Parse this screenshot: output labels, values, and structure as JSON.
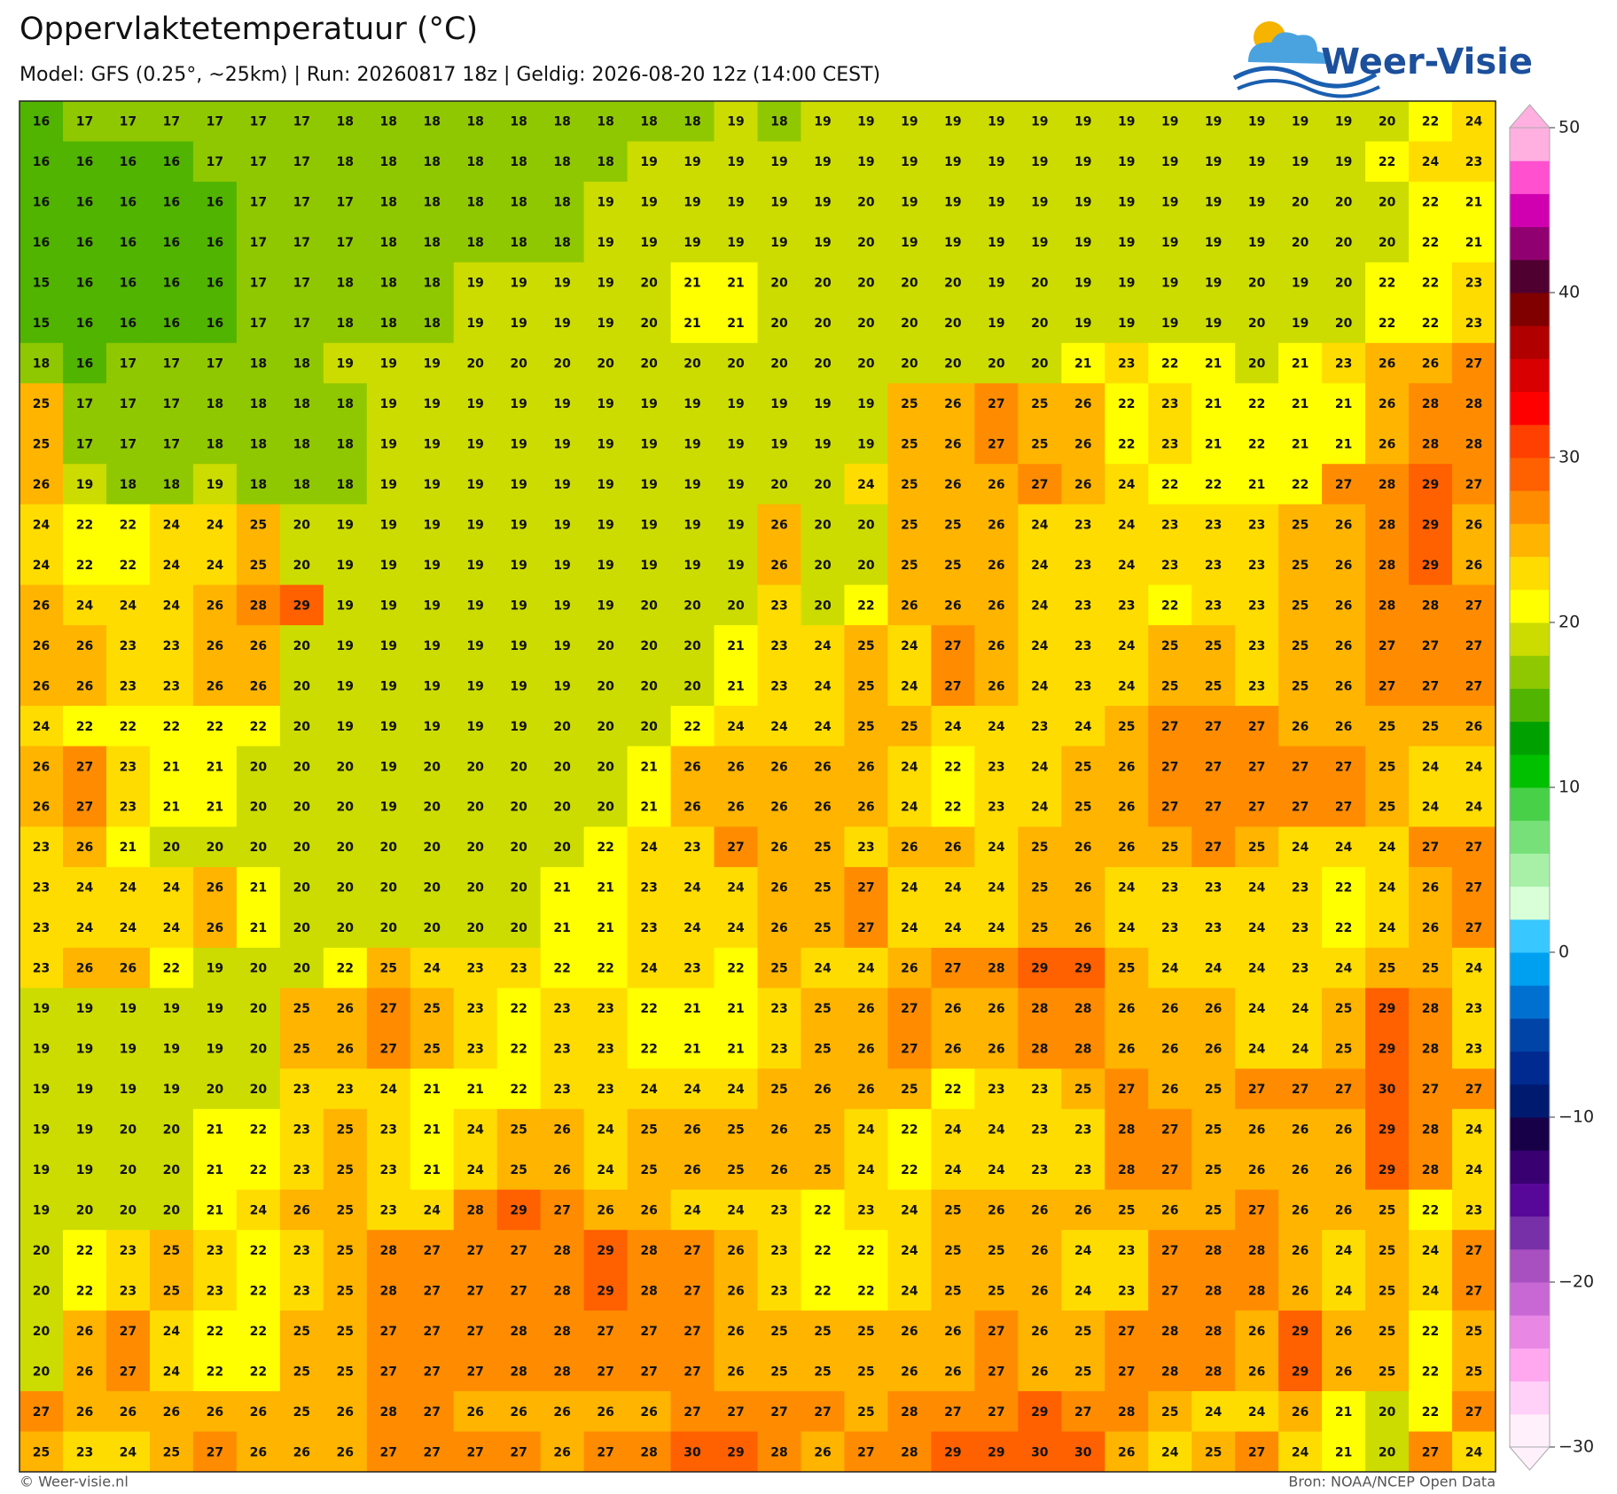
{
  "map": {
    "title": "Oppervlaktetemperatuur (°C)",
    "subtitle": "Model: GFS (0.25°, ~25km)  |  Run: 20260817 18z  |  Geldig: 2026-08-20 12z (14:00 CEST)",
    "logo_text": "Weer-Visie",
    "footer_left": "© Weer-visie.nl",
    "footer_right": "Bron: NOAA/NCEP Open Data",
    "grid": [
      [
        16,
        17,
        17,
        17,
        17,
        17,
        17,
        18,
        18,
        18,
        18,
        18,
        18,
        18,
        18,
        18,
        19,
        18,
        19,
        19,
        19,
        19,
        19,
        19,
        19,
        19,
        19,
        19,
        19,
        19,
        19,
        20,
        22,
        24
      ],
      [
        16,
        16,
        16,
        16,
        17,
        17,
        17,
        18,
        18,
        18,
        18,
        18,
        18,
        18,
        19,
        19,
        19,
        19,
        19,
        19,
        19,
        19,
        19,
        19,
        19,
        19,
        19,
        19,
        19,
        19,
        19,
        22,
        24,
        23
      ],
      [
        16,
        16,
        16,
        16,
        16,
        17,
        17,
        17,
        18,
        18,
        18,
        18,
        18,
        19,
        19,
        19,
        19,
        19,
        19,
        20,
        19,
        19,
        19,
        19,
        19,
        19,
        19,
        19,
        19,
        20,
        20,
        20,
        22,
        21
      ],
      [
        16,
        16,
        16,
        16,
        16,
        17,
        17,
        17,
        18,
        18,
        18,
        18,
        18,
        19,
        19,
        19,
        19,
        19,
        19,
        20,
        19,
        19,
        19,
        19,
        19,
        19,
        19,
        19,
        19,
        20,
        20,
        20,
        22,
        21
      ],
      [
        15,
        16,
        16,
        16,
        16,
        17,
        17,
        18,
        18,
        18,
        19,
        19,
        19,
        19,
        20,
        21,
        21,
        20,
        20,
        20,
        20,
        20,
        19,
        20,
        19,
        19,
        19,
        19,
        20,
        19,
        20,
        22,
        22,
        23
      ],
      [
        15,
        16,
        16,
        16,
        16,
        17,
        17,
        18,
        18,
        18,
        19,
        19,
        19,
        19,
        20,
        21,
        21,
        20,
        20,
        20,
        20,
        20,
        19,
        20,
        19,
        19,
        19,
        19,
        20,
        19,
        20,
        22,
        22,
        23
      ],
      [
        18,
        16,
        17,
        17,
        17,
        18,
        18,
        19,
        19,
        19,
        20,
        20,
        20,
        20,
        20,
        20,
        20,
        20,
        20,
        20,
        20,
        20,
        20,
        20,
        21,
        23,
        22,
        21,
        20,
        21,
        23,
        26,
        26,
        27
      ],
      [
        25,
        17,
        17,
        17,
        18,
        18,
        18,
        18,
        19,
        19,
        19,
        19,
        19,
        19,
        19,
        19,
        19,
        19,
        19,
        19,
        25,
        26,
        27,
        25,
        26,
        22,
        23,
        21,
        22,
        21,
        21,
        26,
        28,
        28
      ],
      [
        25,
        17,
        17,
        17,
        18,
        18,
        18,
        18,
        19,
        19,
        19,
        19,
        19,
        19,
        19,
        19,
        19,
        19,
        19,
        19,
        25,
        26,
        27,
        25,
        26,
        22,
        23,
        21,
        22,
        21,
        21,
        26,
        28,
        28
      ],
      [
        26,
        19,
        18,
        18,
        19,
        18,
        18,
        18,
        19,
        19,
        19,
        19,
        19,
        19,
        19,
        19,
        19,
        20,
        20,
        24,
        25,
        26,
        26,
        27,
        26,
        24,
        22,
        22,
        21,
        22,
        27,
        28,
        29,
        27
      ],
      [
        24,
        22,
        22,
        24,
        24,
        25,
        20,
        19,
        19,
        19,
        19,
        19,
        19,
        19,
        19,
        19,
        19,
        26,
        20,
        20,
        25,
        25,
        26,
        24,
        23,
        24,
        23,
        23,
        23,
        25,
        26,
        28,
        29,
        26
      ],
      [
        24,
        22,
        22,
        24,
        24,
        25,
        20,
        19,
        19,
        19,
        19,
        19,
        19,
        19,
        19,
        19,
        19,
        26,
        20,
        20,
        25,
        25,
        26,
        24,
        23,
        24,
        23,
        23,
        23,
        25,
        26,
        28,
        29,
        26
      ],
      [
        26,
        24,
        24,
        24,
        26,
        28,
        29,
        19,
        19,
        19,
        19,
        19,
        19,
        19,
        20,
        20,
        20,
        23,
        20,
        22,
        26,
        26,
        26,
        24,
        23,
        23,
        22,
        23,
        23,
        25,
        26,
        28,
        28,
        27
      ],
      [
        26,
        26,
        23,
        23,
        26,
        26,
        20,
        19,
        19,
        19,
        19,
        19,
        19,
        20,
        20,
        20,
        21,
        23,
        24,
        25,
        24,
        27,
        26,
        24,
        23,
        24,
        25,
        25,
        23,
        25,
        26,
        27,
        27,
        27
      ],
      [
        26,
        26,
        23,
        23,
        26,
        26,
        20,
        19,
        19,
        19,
        19,
        19,
        19,
        20,
        20,
        20,
        21,
        23,
        24,
        25,
        24,
        27,
        26,
        24,
        23,
        24,
        25,
        25,
        23,
        25,
        26,
        27,
        27,
        27
      ],
      [
        24,
        22,
        22,
        22,
        22,
        22,
        20,
        19,
        19,
        19,
        19,
        19,
        20,
        20,
        20,
        22,
        24,
        24,
        24,
        25,
        25,
        24,
        24,
        23,
        24,
        25,
        27,
        27,
        27,
        26,
        26,
        25,
        25,
        26
      ],
      [
        26,
        27,
        23,
        21,
        21,
        20,
        20,
        20,
        19,
        20,
        20,
        20,
        20,
        20,
        21,
        26,
        26,
        26,
        26,
        26,
        24,
        22,
        23,
        24,
        25,
        26,
        27,
        27,
        27,
        27,
        27,
        25,
        24,
        24
      ],
      [
        26,
        27,
        23,
        21,
        21,
        20,
        20,
        20,
        19,
        20,
        20,
        20,
        20,
        20,
        21,
        26,
        26,
        26,
        26,
        26,
        24,
        22,
        23,
        24,
        25,
        26,
        27,
        27,
        27,
        27,
        27,
        25,
        24,
        24
      ],
      [
        23,
        26,
        21,
        20,
        20,
        20,
        20,
        20,
        20,
        20,
        20,
        20,
        20,
        22,
        24,
        23,
        27,
        26,
        25,
        23,
        26,
        26,
        24,
        25,
        26,
        26,
        25,
        27,
        25,
        24,
        24,
        24,
        27,
        27
      ],
      [
        23,
        24,
        24,
        24,
        26,
        21,
        20,
        20,
        20,
        20,
        20,
        20,
        21,
        21,
        23,
        24,
        24,
        26,
        25,
        27,
        24,
        24,
        24,
        25,
        26,
        24,
        23,
        23,
        24,
        23,
        22,
        24,
        26,
        27
      ],
      [
        23,
        24,
        24,
        24,
        26,
        21,
        20,
        20,
        20,
        20,
        20,
        20,
        21,
        21,
        23,
        24,
        24,
        26,
        25,
        27,
        24,
        24,
        24,
        25,
        26,
        24,
        23,
        23,
        24,
        23,
        22,
        24,
        26,
        27
      ],
      [
        23,
        26,
        26,
        22,
        19,
        20,
        20,
        22,
        25,
        24,
        23,
        23,
        22,
        22,
        24,
        23,
        22,
        25,
        24,
        24,
        26,
        27,
        28,
        29,
        29,
        25,
        24,
        24,
        24,
        23,
        24,
        25,
        25,
        24
      ],
      [
        19,
        19,
        19,
        19,
        19,
        20,
        25,
        26,
        27,
        25,
        23,
        22,
        23,
        23,
        22,
        21,
        21,
        23,
        25,
        26,
        27,
        26,
        26,
        28,
        28,
        26,
        26,
        26,
        24,
        24,
        25,
        29,
        28,
        23
      ],
      [
        19,
        19,
        19,
        19,
        19,
        20,
        25,
        26,
        27,
        25,
        23,
        22,
        23,
        23,
        22,
        21,
        21,
        23,
        25,
        26,
        27,
        26,
        26,
        28,
        28,
        26,
        26,
        26,
        24,
        24,
        25,
        29,
        28,
        23
      ],
      [
        19,
        19,
        19,
        19,
        20,
        20,
        23,
        23,
        24,
        21,
        21,
        22,
        23,
        23,
        24,
        24,
        24,
        25,
        26,
        26,
        25,
        22,
        23,
        23,
        25,
        27,
        26,
        25,
        27,
        27,
        27,
        30,
        27,
        27
      ],
      [
        19,
        19,
        20,
        20,
        21,
        22,
        23,
        25,
        23,
        21,
        24,
        25,
        26,
        24,
        25,
        26,
        25,
        26,
        25,
        24,
        22,
        24,
        24,
        23,
        23,
        28,
        27,
        25,
        26,
        26,
        26,
        29,
        28,
        24
      ],
      [
        19,
        19,
        20,
        20,
        21,
        22,
        23,
        25,
        23,
        21,
        24,
        25,
        26,
        24,
        25,
        26,
        25,
        26,
        25,
        24,
        22,
        24,
        24,
        23,
        23,
        28,
        27,
        25,
        26,
        26,
        26,
        29,
        28,
        24
      ],
      [
        19,
        20,
        20,
        20,
        21,
        24,
        26,
        25,
        23,
        24,
        28,
        29,
        27,
        26,
        26,
        24,
        24,
        23,
        22,
        23,
        24,
        25,
        26,
        26,
        26,
        25,
        26,
        25,
        27,
        26,
        26,
        25,
        22,
        23
      ],
      [
        20,
        22,
        23,
        25,
        23,
        22,
        23,
        25,
        28,
        27,
        27,
        27,
        28,
        29,
        28,
        27,
        26,
        23,
        22,
        22,
        24,
        25,
        25,
        26,
        24,
        23,
        27,
        28,
        28,
        26,
        24,
        25,
        24,
        27
      ],
      [
        20,
        22,
        23,
        25,
        23,
        22,
        23,
        25,
        28,
        27,
        27,
        27,
        28,
        29,
        28,
        27,
        26,
        23,
        22,
        22,
        24,
        25,
        25,
        26,
        24,
        23,
        27,
        28,
        28,
        26,
        24,
        25,
        24,
        27
      ],
      [
        20,
        26,
        27,
        24,
        22,
        22,
        25,
        25,
        27,
        27,
        27,
        28,
        28,
        27,
        27,
        27,
        26,
        25,
        25,
        25,
        26,
        26,
        27,
        26,
        25,
        27,
        28,
        28,
        26,
        29,
        26,
        25,
        22,
        25
      ],
      [
        20,
        26,
        27,
        24,
        22,
        22,
        25,
        25,
        27,
        27,
        27,
        28,
        28,
        27,
        27,
        27,
        26,
        25,
        25,
        25,
        26,
        26,
        27,
        26,
        25,
        27,
        28,
        28,
        26,
        29,
        26,
        25,
        22,
        25
      ],
      [
        27,
        26,
        26,
        26,
        26,
        26,
        25,
        26,
        28,
        27,
        26,
        26,
        26,
        26,
        26,
        27,
        27,
        27,
        27,
        25,
        28,
        27,
        27,
        29,
        27,
        28,
        25,
        24,
        24,
        26,
        21,
        20,
        22,
        27
      ],
      [
        25,
        23,
        24,
        25,
        27,
        26,
        26,
        26,
        27,
        27,
        27,
        27,
        26,
        27,
        28,
        30,
        29,
        28,
        26,
        27,
        28,
        29,
        29,
        30,
        30,
        26,
        24,
        25,
        27,
        24,
        21,
        20,
        27,
        24
      ]
    ],
    "colorbar": {
      "lim": [
        -30,
        50
      ],
      "ticks": [
        50,
        40,
        30,
        20,
        10,
        0,
        {
          "value": -10,
          "label": "−10"
        },
        {
          "value": -20,
          "label": "−20"
        },
        {
          "value": -30,
          "label": "−30"
        }
      ],
      "colors": [
        "#fff0fc",
        "#ffd0f8",
        "#ffa8f0",
        "#e888e4",
        "#c868d4",
        "#a850c0",
        "#7830a8",
        "#580898",
        "#380070",
        "#180048",
        "#001a70",
        "#002a90",
        "#0044a8",
        "#0070d0",
        "#00a0f0",
        "#38c8ff",
        "#d8ffd8",
        "#a8f0a8",
        "#78e078",
        "#48d048",
        "#00c000",
        "#00a000",
        "#50b400",
        "#90c800",
        "#ccdc00",
        "#ffff00",
        "#ffdc00",
        "#ffb400",
        "#ff8c00",
        "#ff6000",
        "#ff4000",
        "#ff0000",
        "#d80000",
        "#b00000",
        "#800000",
        "#500030",
        "#900070",
        "#d000b0",
        "#ff50d0",
        "#ffb0e0"
      ]
    }
  }
}
